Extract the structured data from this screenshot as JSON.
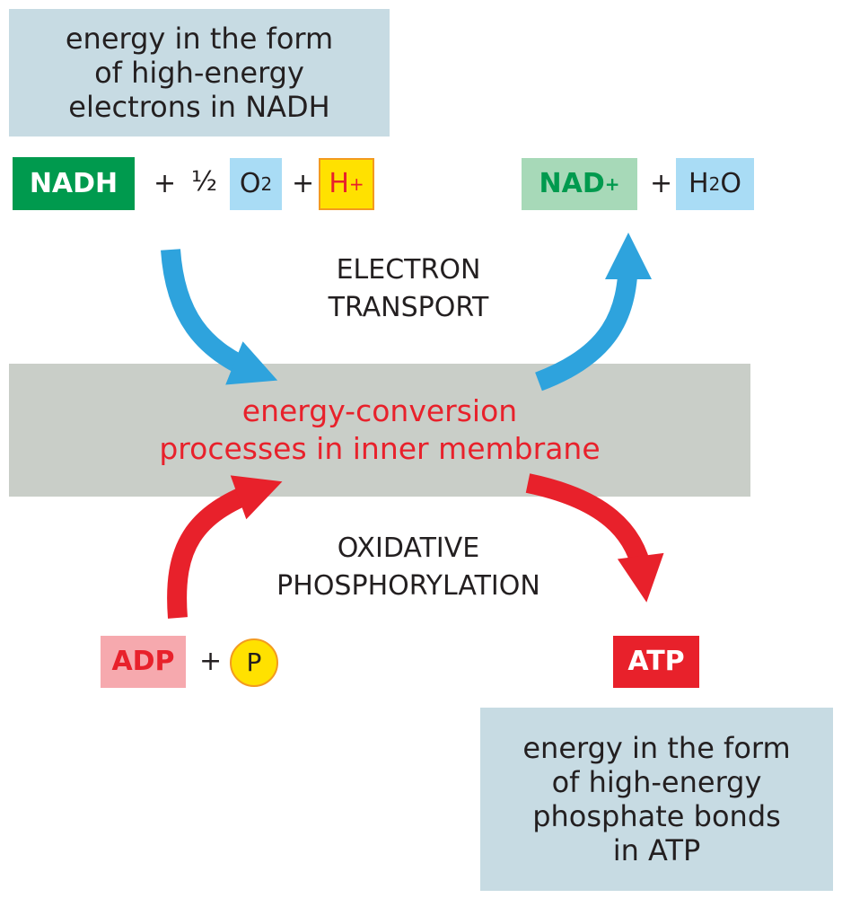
{
  "colors": {
    "note_bg": "#c7dbe3",
    "membrane_bg": "#c9cec8",
    "nadh_bg": "#009a4e",
    "nad_bg": "#a7d9b8",
    "nad_text": "#009a4e",
    "o2_bg": "#a9dcf5",
    "h_bg": "#ffe100",
    "h_text": "#e8212b",
    "adp_bg": "#f6a9ae",
    "adp_text": "#e8212b",
    "atp_bg": "#e8212b",
    "p_bg": "#ffe100",
    "p_border": "#f39a1f",
    "electron_arrow": "#2ea3dd",
    "phosphorylation_arrow": "#e8212b",
    "membrane_text": "#e8212b"
  },
  "top_note": {
    "line1": "energy in the form",
    "line2": "of high-energy",
    "line3": "electrons in NADH"
  },
  "reactants": {
    "nadh": "NADH",
    "plus1": "+",
    "half": "½",
    "o2_base": "O",
    "o2_sub": "2",
    "plus2": "+",
    "h_base": "H",
    "h_sup": "+"
  },
  "products": {
    "nad_base": "NAD",
    "nad_sup": "+",
    "plus": "+",
    "h2o_h": "H",
    "h2o_sub": "2",
    "h2o_o": "O"
  },
  "electron_transport_label": {
    "line1": "ELECTRON",
    "line2": "TRANSPORT"
  },
  "membrane": {
    "line1": "energy-conversion",
    "line2": "processes in inner membrane"
  },
  "oxidative_label": {
    "line1": "OXIDATIVE",
    "line2": "PHOSPHORYLATION"
  },
  "adp_side": {
    "adp": "ADP",
    "plus": "+",
    "p": "P"
  },
  "atp": "ATP",
  "bottom_note": {
    "line1": "energy in the form",
    "line2": "of high-energy",
    "line3": "phosphate bonds",
    "line4": "in ATP"
  }
}
